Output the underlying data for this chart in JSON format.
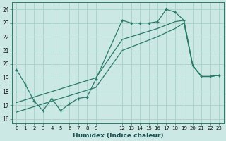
{
  "xlabel": "Humidex (Indice chaleur)",
  "bg_color": "#cce8e4",
  "grid_color": "#aad4cf",
  "line_color": "#2a7a6a",
  "ylim": [
    15.7,
    24.5
  ],
  "xlim": [
    -0.5,
    23.5
  ],
  "line1_x": [
    0,
    1,
    2,
    3,
    4,
    5,
    6,
    7,
    8,
    9,
    12,
    13,
    14,
    15,
    16,
    17,
    18,
    19,
    20,
    21,
    22,
    23
  ],
  "line1_y": [
    19.6,
    18.5,
    17.3,
    16.6,
    17.5,
    16.6,
    17.1,
    17.5,
    17.6,
    18.9,
    23.2,
    23.0,
    23.0,
    23.0,
    23.1,
    24.0,
    23.8,
    23.2,
    19.9,
    19.1,
    19.1,
    19.2
  ],
  "line2_x": [
    0,
    9,
    12,
    13,
    14,
    15,
    16,
    17,
    18,
    19,
    20,
    21,
    22,
    23
  ],
  "line2_y": [
    17.2,
    19.0,
    21.8,
    22.0,
    22.2,
    22.4,
    22.6,
    22.85,
    23.1,
    23.2,
    19.9,
    19.1,
    19.1,
    19.2
  ],
  "line3_x": [
    0,
    9,
    12,
    13,
    14,
    15,
    16,
    17,
    18,
    19,
    20,
    21,
    22,
    23
  ],
  "line3_y": [
    16.5,
    18.3,
    21.0,
    21.25,
    21.5,
    21.75,
    22.0,
    22.3,
    22.6,
    23.0,
    19.9,
    19.1,
    19.1,
    19.2
  ],
  "x_ticks": [
    0,
    1,
    2,
    3,
    4,
    5,
    6,
    7,
    8,
    9,
    12,
    13,
    14,
    15,
    16,
    17,
    18,
    19,
    20,
    21,
    22,
    23
  ],
  "y_ticks": [
    16,
    17,
    18,
    19,
    20,
    21,
    22,
    23,
    24
  ]
}
